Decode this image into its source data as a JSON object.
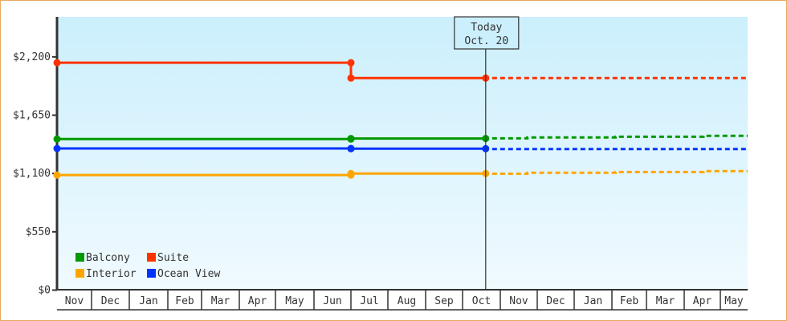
{
  "chart_data": {
    "type": "line",
    "step": true,
    "title": "",
    "xlabel": "",
    "ylabel": "",
    "ylim": [
      0,
      2600
    ],
    "y_ticks": [
      0,
      550,
      1100,
      1650,
      2200
    ],
    "y_tick_labels": [
      "$0",
      "$550",
      "$1,100",
      "$1,650",
      "$2,200"
    ],
    "x_tick_labels": [
      "Nov",
      "Dec",
      "Jan",
      "Feb",
      "Mar",
      "Apr",
      "May",
      "Jun",
      "Jul",
      "Aug",
      "Sep",
      "Oct",
      "Nov",
      "Dec",
      "Jan",
      "Feb",
      "Mar",
      "Apr",
      "May"
    ],
    "today": {
      "line1": "Today",
      "line2": "Oct. 20",
      "date": "Oct 20"
    },
    "grid": false,
    "legend_position": "bottom-left",
    "background": [
      "#cbeffc",
      "#f0faff"
    ],
    "series": [
      {
        "name": "Balcony",
        "color": "#009900",
        "history": [
          {
            "date": "Nov 1",
            "value": 1425
          },
          {
            "date": "Jul 1",
            "value": 1430
          },
          {
            "date": "Oct 20",
            "value": 1430
          }
        ],
        "forecast": [
          {
            "date": "Oct 20",
            "value": 1432
          },
          {
            "date": "Nov 23",
            "value": 1440
          },
          {
            "date": "Feb 4",
            "value": 1447
          },
          {
            "date": "Apr 17",
            "value": 1455
          }
        ]
      },
      {
        "name": "Suite",
        "color": "#ff3300",
        "history": [
          {
            "date": "Nov 1",
            "value": 2145
          },
          {
            "date": "Jul 1",
            "value": 2000
          },
          {
            "date": "Oct 20",
            "value": 2000
          }
        ],
        "forecast": [
          {
            "date": "Oct 20",
            "value": 2000
          }
        ]
      },
      {
        "name": "Interior",
        "color": "#ffa500",
        "history": [
          {
            "date": "Nov 1",
            "value": 1085
          },
          {
            "date": "Jul 1",
            "value": 1100
          },
          {
            "date": "Oct 20",
            "value": 1100
          }
        ],
        "forecast": [
          {
            "date": "Oct 20",
            "value": 1098
          },
          {
            "date": "Nov 23",
            "value": 1107
          },
          {
            "date": "Feb 4",
            "value": 1114
          },
          {
            "date": "Apr 17",
            "value": 1122
          }
        ]
      },
      {
        "name": "Ocean View",
        "color": "#0033ff",
        "history": [
          {
            "date": "Nov 1",
            "value": 1336
          },
          {
            "date": "Jul 1",
            "value": 1334
          },
          {
            "date": "Oct 20",
            "value": 1334
          }
        ],
        "forecast": [
          {
            "date": "Oct 20",
            "value": 1330
          }
        ]
      }
    ]
  }
}
